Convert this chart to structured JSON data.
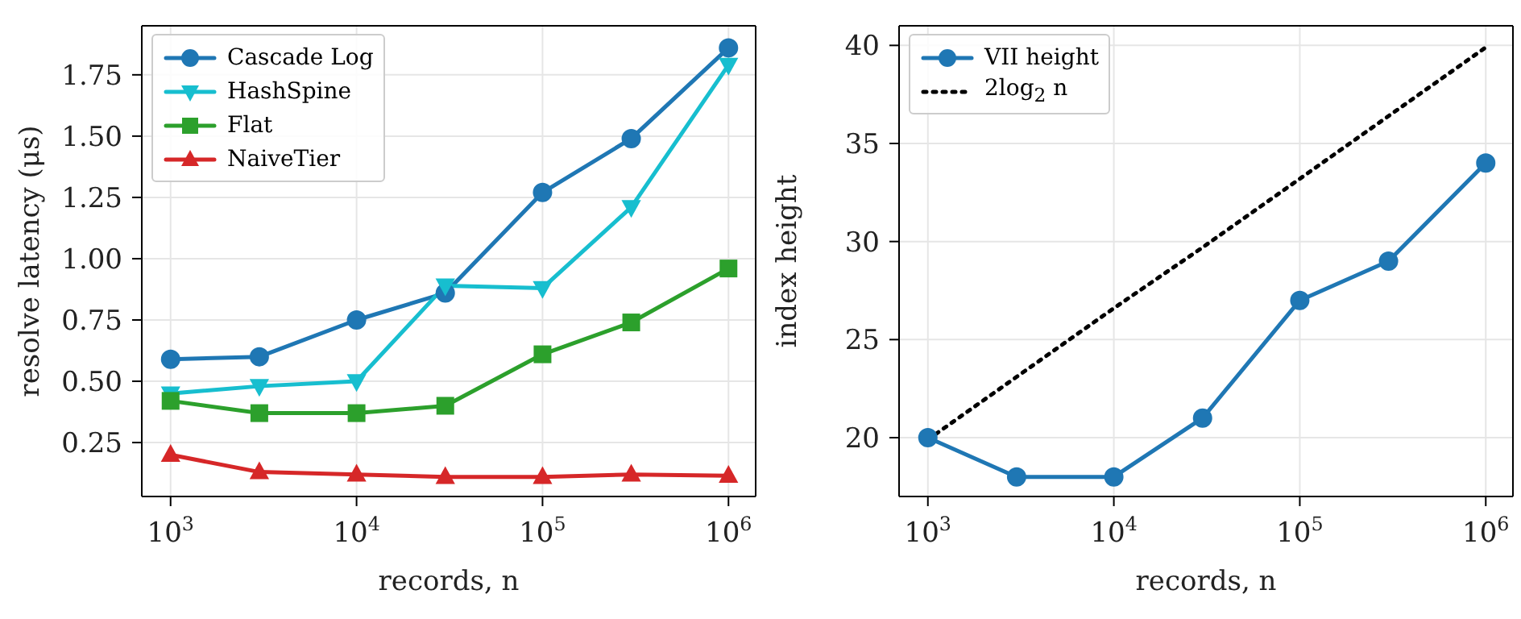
{
  "chart_data": [
    {
      "type": "line",
      "xlabel": "records, n",
      "ylabel": "resolve latency (μs)",
      "log": "x",
      "grid": true,
      "legend": "top left",
      "line_style": "solid",
      "x": [
        1000,
        3000,
        10000,
        30000,
        100000,
        300000,
        1000000
      ],
      "xlim": [
        700,
        1400000
      ],
      "xticks": [
        {
          "value": 1000,
          "label": "10$^{3}$"
        },
        {
          "value": 10000,
          "label": "10$^{4}$"
        },
        {
          "value": 100000,
          "label": "10$^{5}$"
        },
        {
          "value": 1000000,
          "label": "10$^{6}$"
        }
      ],
      "ylim": [
        0.03,
        1.95
      ],
      "yticks": [
        {
          "value": 0.25,
          "label": "0.25"
        },
        {
          "value": 0.5,
          "label": "0.50"
        },
        {
          "value": 0.75,
          "label": "0.75"
        },
        {
          "value": 1,
          "label": "1.00"
        },
        {
          "value": 1.25,
          "label": "1.25"
        },
        {
          "value": 1.5,
          "label": "1.50"
        },
        {
          "value": 1.75,
          "label": "1.75"
        }
      ],
      "series": [
        {
          "name": "Cascade Log",
          "color": "#1f77b4",
          "marker": "circle",
          "values": [
            0.59,
            0.6,
            0.75,
            0.86,
            1.27,
            1.49,
            1.86
          ]
        },
        {
          "name": "HashSpine",
          "color": "#17becf",
          "marker": "triangle-down",
          "values": [
            0.45,
            0.48,
            0.5,
            0.89,
            0.88,
            1.21,
            1.79
          ]
        },
        {
          "name": "Flat",
          "color": "#2ca02c",
          "marker": "square",
          "values": [
            0.42,
            0.37,
            0.37,
            0.4,
            0.61,
            0.74,
            0.96
          ]
        },
        {
          "name": "NaiveTier",
          "color": "#d62728",
          "marker": "triangle",
          "values": [
            0.2,
            0.13,
            0.12,
            0.11,
            0.11,
            0.12,
            0.115
          ]
        }
      ]
    },
    {
      "type": "line",
      "xlabel": "records, n",
      "ylabel": "index height",
      "log": "x",
      "grid": true,
      "legend": "top left",
      "x": [
        1000,
        3000,
        10000,
        30000,
        100000,
        300000,
        1000000
      ],
      "xlim": [
        700,
        1400000
      ],
      "xticks": [
        {
          "value": 1000,
          "label": "10$^{3}$"
        },
        {
          "value": 10000,
          "label": "10$^{4}$"
        },
        {
          "value": 100000,
          "label": "10$^{5}$"
        },
        {
          "value": 1000000,
          "label": "10$^{6}$"
        }
      ],
      "ylim": [
        17,
        41
      ],
      "yticks": [
        20,
        25,
        30,
        35,
        40
      ],
      "series": [
        {
          "name": "VII height",
          "color": "#1f77b4",
          "marker": "circle",
          "line_style": "solid",
          "values": [
            20,
            18,
            18,
            21,
            27,
            29,
            34
          ]
        },
        {
          "name": "2log$_{2}$ n",
          "color": "#000000",
          "marker": "none",
          "line_style": "dotted",
          "values": [
            19.9,
            23.1,
            26.6,
            29.7,
            33.2,
            36.4,
            39.9
          ]
        }
      ]
    }
  ]
}
